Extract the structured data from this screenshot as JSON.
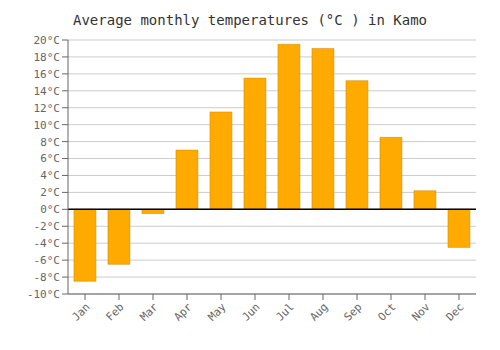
{
  "chart_data": {
    "type": "bar",
    "title": "Average monthly temperatures (°C ) in Kamo",
    "categories": [
      "Jan",
      "Feb",
      "Mar",
      "Apr",
      "May",
      "Jun",
      "Jul",
      "Aug",
      "Sep",
      "Oct",
      "Nov",
      "Dec"
    ],
    "values": [
      -8.5,
      -6.5,
      -0.5,
      7.0,
      11.5,
      15.5,
      19.5,
      19.0,
      15.2,
      8.5,
      2.2,
      -4.5
    ],
    "color": "#FFAA00",
    "ylim": [
      -10,
      20
    ],
    "yticks": [
      {
        "value": -10,
        "label": "-10°C"
      },
      {
        "value": -8,
        "label": "-8°C"
      },
      {
        "value": -6,
        "label": "-6°C"
      },
      {
        "value": -4,
        "label": "-4°C"
      },
      {
        "value": -2,
        "label": "-2°C"
      },
      {
        "value": 0,
        "label": "0°C"
      },
      {
        "value": 2,
        "label": "2°C"
      },
      {
        "value": 4,
        "label": "4°C"
      },
      {
        "value": 6,
        "label": "6°C"
      },
      {
        "value": 8,
        "label": "8°C"
      },
      {
        "value": 10,
        "label": "10°C"
      },
      {
        "value": 12,
        "label": "12°C"
      },
      {
        "value": 14,
        "label": "14°C"
      },
      {
        "value": 16,
        "label": "16°C"
      },
      {
        "value": 18,
        "label": "18°C"
      },
      {
        "value": 20,
        "label": "20°C"
      }
    ],
    "grid": true
  }
}
